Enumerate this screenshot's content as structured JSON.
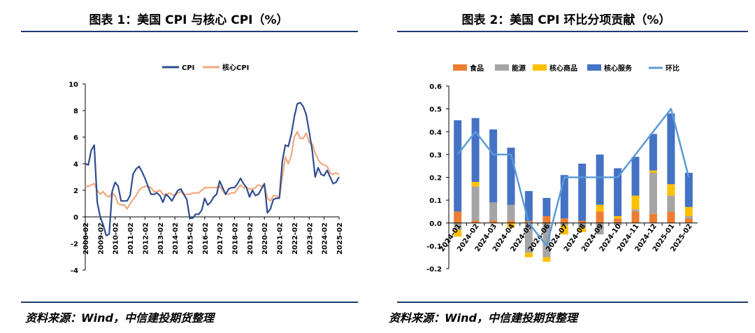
{
  "left": {
    "title": "图表 1：美国 CPI 与核心 CPI（%）",
    "source": "资料来源：Wind，中信建投期货整理",
    "colors": {
      "cpi": "#2f4d8f",
      "core": "#f2a97e"
    }
  },
  "right": {
    "title": "图表 2：美国 CPI 环比分项贡献（%）",
    "source": "资料来源：Wind，中信建投期货整理",
    "colors": {
      "food": "#ed7d31",
      "energy": "#a5a5a5",
      "core_goods": "#ffc000",
      "core_services": "#4472c4",
      "mom": "#5b9bd5"
    }
  },
  "chart_data": [
    {
      "type": "line",
      "legend": [
        "CPI",
        "核心CPI"
      ],
      "legend_position": "top",
      "x_ticks": [
        "2008-02",
        "2009-02",
        "2010-02",
        "2011-02",
        "2012-02",
        "2013-02",
        "2014-02",
        "2015-02",
        "2016-02",
        "2017-02",
        "2018-02",
        "2019-02",
        "2020-02",
        "2021-02",
        "2022-02",
        "2023-02",
        "2024-02",
        "2025-02"
      ],
      "y_ticks": [
        10,
        8,
        6,
        4,
        2,
        0,
        -2,
        -4
      ],
      "ylim": [
        -4,
        10
      ],
      "grid": false,
      "series": [
        {
          "name": "CPI",
          "x": [
            2008.1,
            2008.3,
            2008.5,
            2008.7,
            2008.9,
            2009.1,
            2009.3,
            2009.5,
            2009.7,
            2009.9,
            2010.1,
            2010.3,
            2010.5,
            2010.7,
            2010.9,
            2011.1,
            2011.3,
            2011.5,
            2011.7,
            2011.9,
            2012.1,
            2012.3,
            2012.5,
            2012.7,
            2012.9,
            2013.1,
            2013.3,
            2013.5,
            2013.7,
            2013.9,
            2014.1,
            2014.3,
            2014.5,
            2014.7,
            2014.9,
            2015.1,
            2015.3,
            2015.5,
            2015.7,
            2015.9,
            2016.1,
            2016.3,
            2016.5,
            2016.7,
            2016.9,
            2017.1,
            2017.3,
            2017.5,
            2017.7,
            2017.9,
            2018.1,
            2018.3,
            2018.5,
            2018.7,
            2018.9,
            2019.1,
            2019.3,
            2019.5,
            2019.7,
            2019.9,
            2020.1,
            2020.3,
            2020.5,
            2020.7,
            2020.9,
            2021.1,
            2021.3,
            2021.5,
            2021.7,
            2021.9,
            2022.1,
            2022.3,
            2022.5,
            2022.7,
            2022.9,
            2023.1,
            2023.3,
            2023.5,
            2023.7,
            2023.9,
            2024.1,
            2024.3,
            2024.5,
            2024.7,
            2024.9,
            2025.1
          ],
          "values": [
            4.0,
            3.9,
            5.0,
            5.4,
            1.1,
            0.0,
            -0.6,
            -1.4,
            -1.3,
            1.9,
            2.6,
            2.3,
            1.2,
            1.2,
            1.2,
            1.6,
            3.2,
            3.6,
            3.8,
            3.4,
            2.9,
            2.3,
            1.7,
            1.7,
            1.8,
            1.6,
            1.1,
            1.7,
            1.5,
            1.2,
            1.6,
            2.0,
            2.1,
            1.7,
            1.3,
            -0.1,
            -0.1,
            0.2,
            0.2,
            0.5,
            1.4,
            0.9,
            1.1,
            1.5,
            1.7,
            2.7,
            2.2,
            1.7,
            2.1,
            2.2,
            2.2,
            2.5,
            2.9,
            2.5,
            2.2,
            1.5,
            2.0,
            1.6,
            1.7,
            2.1,
            2.5,
            0.3,
            0.6,
            1.3,
            1.4,
            1.4,
            4.2,
            5.4,
            5.3,
            6.2,
            7.5,
            8.5,
            8.6,
            8.3,
            7.7,
            6.4,
            5.0,
            3.0,
            3.7,
            3.2,
            3.1,
            3.5,
            3.0,
            2.5,
            2.6,
            3.0
          ]
        },
        {
          "name": "核心CPI",
          "x": [
            2008.1,
            2008.3,
            2008.5,
            2008.7,
            2008.9,
            2009.1,
            2009.3,
            2009.5,
            2009.7,
            2009.9,
            2010.1,
            2010.3,
            2010.5,
            2010.7,
            2010.9,
            2011.1,
            2011.3,
            2011.5,
            2011.7,
            2011.9,
            2012.1,
            2012.3,
            2012.5,
            2012.7,
            2012.9,
            2013.1,
            2013.3,
            2013.5,
            2013.7,
            2013.9,
            2014.1,
            2014.3,
            2014.5,
            2014.7,
            2014.9,
            2015.1,
            2015.3,
            2015.5,
            2015.7,
            2015.9,
            2016.1,
            2016.3,
            2016.5,
            2016.7,
            2016.9,
            2017.1,
            2017.3,
            2017.5,
            2017.7,
            2017.9,
            2018.1,
            2018.3,
            2018.5,
            2018.7,
            2018.9,
            2019.1,
            2019.3,
            2019.5,
            2019.7,
            2019.9,
            2020.1,
            2020.3,
            2020.5,
            2020.7,
            2020.9,
            2021.1,
            2021.3,
            2021.5,
            2021.7,
            2021.9,
            2022.1,
            2022.3,
            2022.5,
            2022.7,
            2022.9,
            2023.1,
            2023.3,
            2023.5,
            2023.7,
            2023.9,
            2024.1,
            2024.3,
            2024.5,
            2024.7,
            2024.9,
            2025.1
          ],
          "values": [
            2.3,
            2.3,
            2.4,
            2.5,
            2.0,
            1.7,
            1.9,
            1.6,
            1.5,
            1.8,
            1.6,
            1.0,
            0.9,
            0.9,
            0.6,
            1.0,
            1.3,
            1.6,
            2.0,
            2.2,
            2.3,
            2.3,
            2.2,
            1.9,
            1.9,
            2.0,
            1.7,
            1.6,
            1.8,
            1.7,
            1.6,
            1.8,
            1.9,
            1.7,
            1.7,
            1.7,
            1.8,
            1.8,
            1.8,
            2.0,
            2.2,
            2.2,
            2.2,
            2.2,
            2.2,
            2.3,
            2.0,
            1.7,
            1.7,
            1.8,
            1.8,
            2.1,
            2.4,
            2.2,
            2.2,
            2.1,
            2.1,
            2.2,
            2.4,
            2.3,
            2.4,
            1.4,
            1.2,
            1.6,
            1.6,
            1.4,
            3.0,
            4.5,
            4.0,
            4.6,
            6.0,
            6.4,
            5.9,
            5.9,
            6.3,
            5.6,
            5.5,
            4.8,
            4.3,
            4.0,
            3.9,
            3.8,
            3.3,
            3.2,
            3.3,
            3.2
          ]
        }
      ]
    },
    {
      "type": "bar",
      "stacked": true,
      "legend": [
        "食品",
        "能源",
        "核心商品",
        "核心服务",
        "环比"
      ],
      "legend_position": "top",
      "categories": [
        "2024-01",
        "2024-02",
        "2024-03",
        "2024-04",
        "2024-05",
        "2024-06",
        "2024-07",
        "2024-08",
        "2024-09",
        "2024-10",
        "2024-11",
        "2024-12",
        "2025-01",
        "2025-02"
      ],
      "y_ticks": [
        "0.6",
        "0.5",
        "0.4",
        "0.3",
        "0.2",
        "0.1",
        "0.0",
        "-0.1",
        "-0.2"
      ],
      "ylim": [
        -0.2,
        0.6
      ],
      "grid": false,
      "series": [
        {
          "name": "食品",
          "values": [
            0.05,
            0.01,
            0.01,
            0.01,
            0.01,
            0.03,
            0.02,
            0.01,
            0.05,
            0.02,
            0.05,
            0.04,
            0.05,
            0.02
          ]
        },
        {
          "name": "能源",
          "values": [
            -0.03,
            0.15,
            0.08,
            0.07,
            -0.13,
            -0.15,
            -0.01,
            -0.02,
            -0.05,
            -0.01,
            0.01,
            0.18,
            0.07,
            0.01
          ]
        },
        {
          "name": "核心商品",
          "values": [
            -0.03,
            0.02,
            0.0,
            -0.02,
            -0.02,
            -0.02,
            -0.04,
            -0.02,
            0.03,
            0.01,
            0.06,
            0.01,
            0.05,
            0.04
          ]
        },
        {
          "name": "核心服务",
          "values": [
            0.4,
            0.28,
            0.32,
            0.25,
            0.13,
            0.08,
            0.19,
            0.25,
            0.22,
            0.21,
            0.17,
            0.16,
            0.31,
            0.15
          ]
        },
        {
          "name": "环比",
          "type": "line",
          "values": [
            0.3,
            0.4,
            0.3,
            0.3,
            0.0,
            -0.1,
            0.2,
            0.2,
            0.2,
            0.2,
            0.3,
            0.4,
            0.5,
            0.2
          ]
        }
      ]
    }
  ]
}
